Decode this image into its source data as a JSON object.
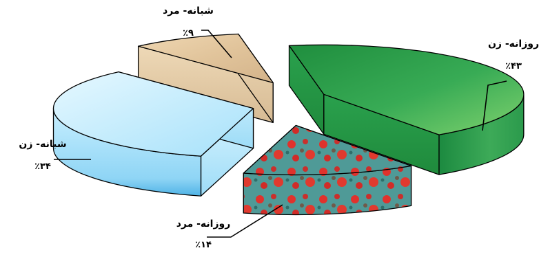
{
  "chart_data": {
    "type": "pie",
    "style": "3d-exploded",
    "title": "",
    "slices": [
      {
        "label": "روزانه- زن",
        "value": 43,
        "value_label": "٪۴۳",
        "color": "#2e9e4e",
        "texture": "green-gradient"
      },
      {
        "label": "روزانه- مرد",
        "value": 14,
        "value_label": "٪۱۴",
        "color": "#3d8f8c",
        "texture": "teal-with-red-blotches"
      },
      {
        "label": "شبانه- زن",
        "value": 34,
        "value_label": "٪۳۴",
        "color": "#aee6fb",
        "texture": "light-blue-gradient"
      },
      {
        "label": "شبانه- مرد",
        "value": 9,
        "value_label": "٪۹",
        "color": "#e6cda6",
        "texture": "sand"
      }
    ],
    "legend": "none",
    "grid": false
  }
}
